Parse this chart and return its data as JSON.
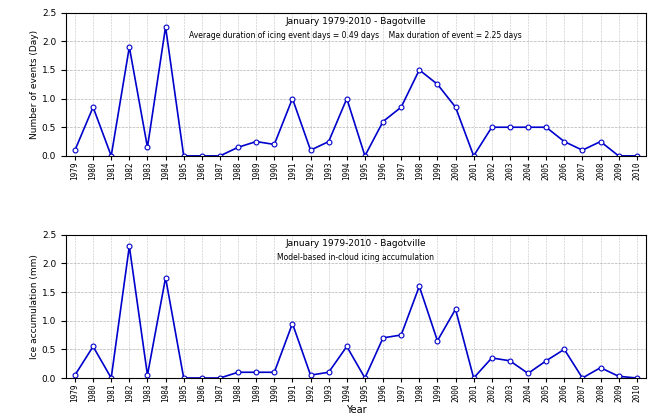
{
  "years": [
    1979,
    1980,
    1981,
    1982,
    1983,
    1984,
    1985,
    1986,
    1987,
    1988,
    1989,
    1990,
    1991,
    1992,
    1993,
    1994,
    1995,
    1996,
    1997,
    1998,
    1999,
    2000,
    2001,
    2002,
    2003,
    2004,
    2005,
    2006,
    2007,
    2008,
    2009,
    2010
  ],
  "duration": [
    0.1,
    0.85,
    0.0,
    1.9,
    0.15,
    2.25,
    0.0,
    0.0,
    0.0,
    0.15,
    0.25,
    0.2,
    1.0,
    0.1,
    0.25,
    1.0,
    0.0,
    0.6,
    0.85,
    1.5,
    1.25,
    0.85,
    0.0,
    0.5,
    0.5,
    0.5,
    0.5,
    0.25,
    0.1,
    0.25,
    0.0,
    0.0
  ],
  "accumulation": [
    0.05,
    0.55,
    0.0,
    2.3,
    0.05,
    1.75,
    0.0,
    0.0,
    0.0,
    0.1,
    0.1,
    0.1,
    0.95,
    0.05,
    0.1,
    0.55,
    0.0,
    0.7,
    0.75,
    1.6,
    0.65,
    1.2,
    0.0,
    0.35,
    0.3,
    0.08,
    0.3,
    0.5,
    0.0,
    0.18,
    0.03,
    0.0
  ],
  "title1_line1": "January 1979-2010 - Bagotville",
  "title1_line2": "Average duration of icing event days = 0.49 days    Max duration of event = 2.25 days",
  "title2_line1": "January 1979-2010 - Bagotville",
  "title2_line2": "Model-based in-cloud icing accumulation",
  "ylabel1": "Number of events (Day)",
  "ylabel2": "Ice accumulation (mm)",
  "xlabel": "Year",
  "ylim": [
    0,
    2.5
  ],
  "yticks": [
    0,
    0.5,
    1,
    1.5,
    2,
    2.5
  ],
  "line_color": "#0000CC",
  "marker": "o",
  "marker_size": 3.5,
  "line_width": 1.2,
  "bg_color": "#FFFFFF",
  "grid_color": "#AAAAAA"
}
